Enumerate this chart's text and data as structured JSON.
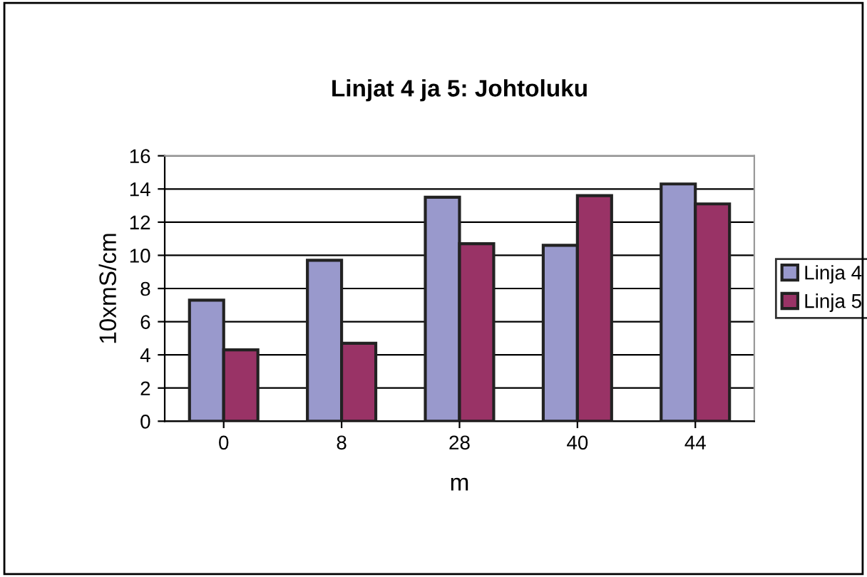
{
  "chart_data": {
    "type": "bar",
    "title": "Linjat 4 ja 5: Johtoluku",
    "xlabel": "m",
    "ylabel": "10xmS/cm",
    "categories": [
      "0",
      "8",
      "28",
      "40",
      "44"
    ],
    "series": [
      {
        "name": "Linja 4",
        "color": "#9999cc",
        "values": [
          7.3,
          9.7,
          13.5,
          10.6,
          14.3
        ]
      },
      {
        "name": "Linja 5",
        "color": "#993366",
        "values": [
          4.3,
          4.7,
          10.7,
          13.6,
          13.1
        ]
      }
    ],
    "ylim": [
      0,
      16
    ],
    "yticks": [
      0,
      2,
      4,
      6,
      8,
      10,
      12,
      14,
      16
    ],
    "grid": "y",
    "legend": "right"
  }
}
